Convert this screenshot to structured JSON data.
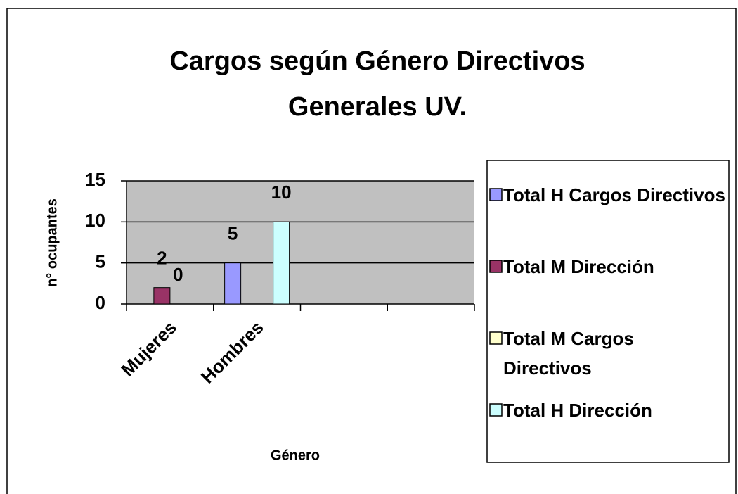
{
  "chart_data": {
    "type": "bar",
    "title": "Cargos según Género Directivos Generales UV.",
    "x_label": "Género",
    "y_label": "n° ocupantes",
    "categories": [
      "Mujeres",
      "Hombres",
      null,
      null
    ],
    "series": [
      {
        "name": "Total H Cargos Directivos",
        "color": "#9999ff",
        "values": [
          null,
          5,
          null,
          null
        ]
      },
      {
        "name": "Total M Dirección",
        "color": "#993366",
        "values": [
          2,
          null,
          null,
          null
        ]
      },
      {
        "name": "Total M Cargos Directivos",
        "color": "#ffffcc",
        "values": [
          0,
          null,
          null,
          null
        ]
      },
      {
        "name": "Total H Dirección",
        "color": "#ccffff",
        "values": [
          null,
          10,
          null,
          null
        ]
      }
    ],
    "ylim": [
      0,
      15
    ],
    "yticks": [
      0,
      5,
      10,
      15
    ],
    "grid": true,
    "plot_background": "#c0c0c0",
    "legend": "right"
  }
}
